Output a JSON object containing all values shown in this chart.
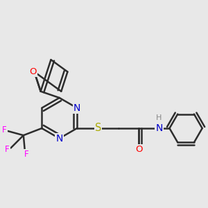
{
  "bg_color": "#e8e8e8",
  "bond_color": "#2d2d2d",
  "bond_width": 1.8,
  "dbo": 0.12,
  "atom_colors": {
    "O": "#ff0000",
    "N": "#0000cc",
    "S": "#aaaa00",
    "F": "#ff00ff",
    "H": "#888888",
    "C": "#2d2d2d"
  },
  "font_size": 9.5,
  "fig_bg": "#e8e8e8"
}
